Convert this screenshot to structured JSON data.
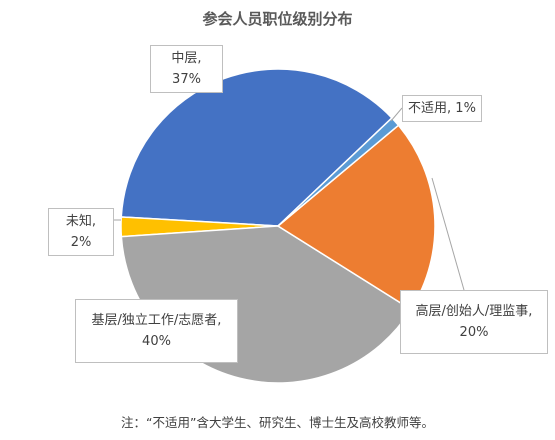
{
  "chart_data": {
    "type": "pie",
    "title": "参会人员职位级别分布",
    "labels": [
      "不适用, 1%",
      "高层/创始人/理监事, 20%",
      "基层/独立工作/志愿者, 40%",
      "未知, 2%",
      "中层, 37%"
    ],
    "values": [
      1,
      20,
      40,
      2,
      37
    ],
    "colors": [
      "#5b9bd5",
      "#ed7d31",
      "#a5a5a5",
      "#ffc000",
      "#4472c4"
    ],
    "note": "注：“不适用”含大学生、研究生、博士生及高校教师等。"
  }
}
